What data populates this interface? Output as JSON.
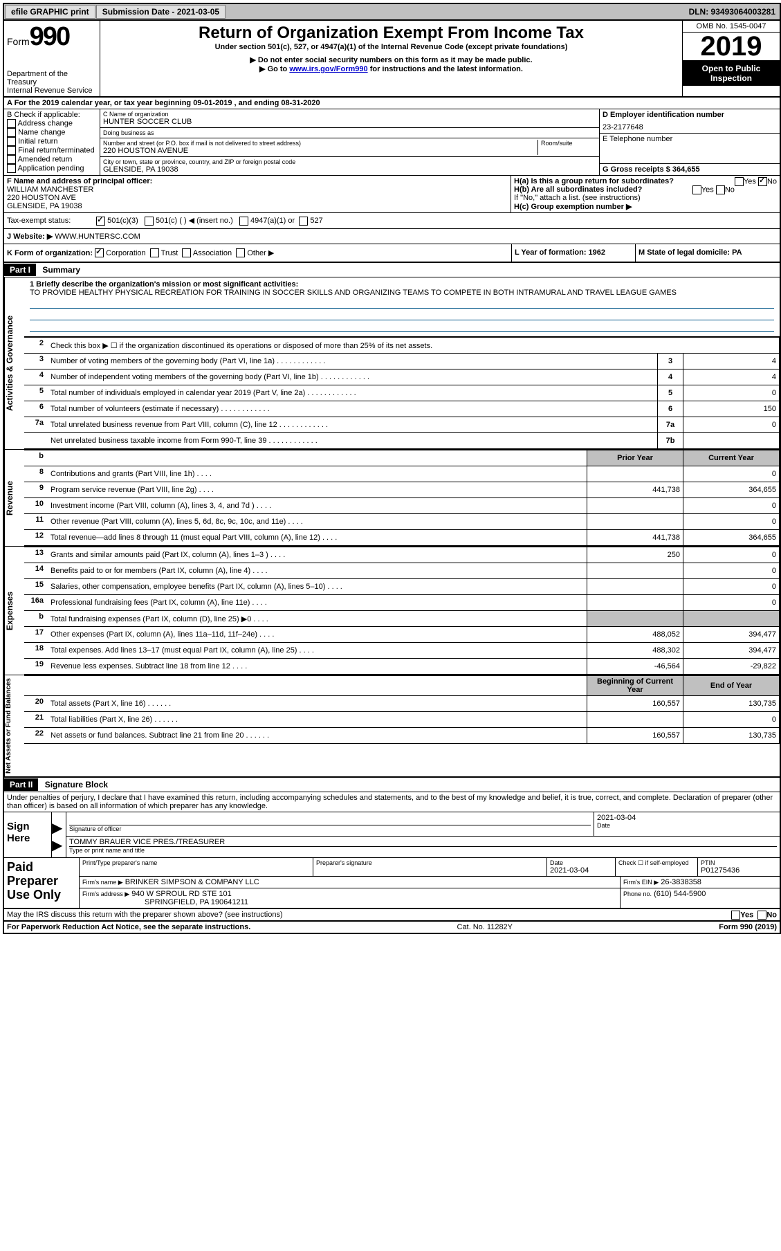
{
  "top_bar": {
    "efile_btn": "efile GRAPHIC print",
    "submission_label": "Submission Date - 2021-03-05",
    "dln": "DLN: 93493064003281"
  },
  "header": {
    "form_label": "Form",
    "form_number": "990",
    "dept": "Department of the Treasury",
    "irs": "Internal Revenue Service",
    "title": "Return of Organization Exempt From Income Tax",
    "sub1": "Under section 501(c), 527, or 4947(a)(1) of the Internal Revenue Code (except private foundations)",
    "sub2": "▶ Do not enter social security numbers on this form as it may be made public.",
    "sub3_pre": "▶ Go to ",
    "sub3_link": "www.irs.gov/Form990",
    "sub3_post": " for instructions and the latest information.",
    "omb": "OMB No. 1545-0047",
    "year": "2019",
    "open": "Open to Public Inspection"
  },
  "section_a": "A For the 2019 calendar year, or tax year beginning 09-01-2019   , and ending 08-31-2020",
  "box_b": {
    "title": "B Check if applicable:",
    "opts": [
      "Address change",
      "Name change",
      "Initial return",
      "Final return/terminated",
      "Amended return",
      "Application pending"
    ]
  },
  "box_c": {
    "name_label": "C Name of organization",
    "name": "HUNTER SOCCER CLUB",
    "dba_label": "Doing business as",
    "addr_label": "Number and street (or P.O. box if mail is not delivered to street address)",
    "room_label": "Room/suite",
    "addr": "220 HOUSTON AVENUE",
    "city_label": "City or town, state or province, country, and ZIP or foreign postal code",
    "city": "GLENSIDE, PA  19038"
  },
  "box_d": {
    "label": "D Employer identification number",
    "val": "23-2177648"
  },
  "box_e": {
    "label": "E Telephone number",
    "val": ""
  },
  "box_g": {
    "label": "G Gross receipts $ 364,655"
  },
  "box_f": {
    "label": "F  Name and address of principal officer:",
    "name": "WILLIAM MANCHESTER",
    "addr1": "220 HOUSTON AVE",
    "addr2": "GLENSIDE, PA  19038"
  },
  "box_h": {
    "ha": "H(a)  Is this a group return for subordinates?",
    "hb": "H(b)  Are all subordinates included?",
    "hb_note": "If \"No,\" attach a list. (see instructions)",
    "hc": "H(c)  Group exemption number ▶",
    "yes": "Yes",
    "no": "No"
  },
  "tax_status": {
    "label": "Tax-exempt status:",
    "opt1": "501(c)(3)",
    "opt2": "501(c) (  ) ◀ (insert no.)",
    "opt3": "4947(a)(1) or",
    "opt4": "527"
  },
  "website": {
    "label": "J    Website: ▶",
    "val": "WWW.HUNTERSC.COM"
  },
  "box_k": {
    "label": "K Form of organization:",
    "corp": "Corporation",
    "trust": "Trust",
    "assoc": "Association",
    "other": "Other ▶"
  },
  "box_l": "L Year of formation: 1962",
  "box_m": "M State of legal domicile: PA",
  "part1": {
    "header": "Part I",
    "title": "Summary",
    "line1_label": "1  Briefly describe the organization's mission or most significant activities:",
    "mission": "TO PROVIDE HEALTHY PHYSICAL RECREATION FOR TRAINING IN SOCCER SKILLS AND ORGANIZING TEAMS TO COMPETE IN BOTH INTRAMURAL AND TRAVEL LEAGUE GAMES",
    "line2": "Check this box ▶ ☐ if the organization discontinued its operations or disposed of more than 25% of its net assets.",
    "side_ag": "Activities & Governance",
    "side_rev": "Revenue",
    "side_exp": "Expenses",
    "side_net": "Net Assets or Fund Balances",
    "rows_ag": [
      {
        "n": "3",
        "d": "Number of voting members of the governing body (Part VI, line 1a)",
        "b": "3",
        "v": "4"
      },
      {
        "n": "4",
        "d": "Number of independent voting members of the governing body (Part VI, line 1b)",
        "b": "4",
        "v": "4"
      },
      {
        "n": "5",
        "d": "Total number of individuals employed in calendar year 2019 (Part V, line 2a)",
        "b": "5",
        "v": "0"
      },
      {
        "n": "6",
        "d": "Total number of volunteers (estimate if necessary)",
        "b": "6",
        "v": "150"
      },
      {
        "n": "7a",
        "d": "Total unrelated business revenue from Part VIII, column (C), line 12",
        "b": "7a",
        "v": "0"
      },
      {
        "n": "",
        "d": "Net unrelated business taxable income from Form 990-T, line 39",
        "b": "7b",
        "v": ""
      }
    ],
    "hdr_prior": "Prior Year",
    "hdr_curr": "Current Year",
    "rows_rev": [
      {
        "n": "8",
        "d": "Contributions and grants (Part VIII, line 1h)",
        "p": "",
        "c": "0"
      },
      {
        "n": "9",
        "d": "Program service revenue (Part VIII, line 2g)",
        "p": "441,738",
        "c": "364,655"
      },
      {
        "n": "10",
        "d": "Investment income (Part VIII, column (A), lines 3, 4, and 7d )",
        "p": "",
        "c": "0"
      },
      {
        "n": "11",
        "d": "Other revenue (Part VIII, column (A), lines 5, 6d, 8c, 9c, 10c, and 11e)",
        "p": "",
        "c": "0"
      },
      {
        "n": "12",
        "d": "Total revenue—add lines 8 through 11 (must equal Part VIII, column (A), line 12)",
        "p": "441,738",
        "c": "364,655"
      }
    ],
    "rows_exp": [
      {
        "n": "13",
        "d": "Grants and similar amounts paid (Part IX, column (A), lines 1–3 )",
        "p": "250",
        "c": "0"
      },
      {
        "n": "14",
        "d": "Benefits paid to or for members (Part IX, column (A), line 4)",
        "p": "",
        "c": "0"
      },
      {
        "n": "15",
        "d": "Salaries, other compensation, employee benefits (Part IX, column (A), lines 5–10)",
        "p": "",
        "c": "0"
      },
      {
        "n": "16a",
        "d": "Professional fundraising fees (Part IX, column (A), line 11e)",
        "p": "",
        "c": "0"
      },
      {
        "n": "b",
        "d": "Total fundraising expenses (Part IX, column (D), line 25) ▶0",
        "p": "GREY",
        "c": "GREY"
      },
      {
        "n": "17",
        "d": "Other expenses (Part IX, column (A), lines 11a–11d, 11f–24e)",
        "p": "488,052",
        "c": "394,477"
      },
      {
        "n": "18",
        "d": "Total expenses. Add lines 13–17 (must equal Part IX, column (A), line 25)",
        "p": "488,302",
        "c": "394,477"
      },
      {
        "n": "19",
        "d": "Revenue less expenses. Subtract line 18 from line 12",
        "p": "-46,564",
        "c": "-29,822"
      }
    ],
    "hdr_beg": "Beginning of Current Year",
    "hdr_end": "End of Year",
    "rows_net": [
      {
        "n": "20",
        "d": "Total assets (Part X, line 16)",
        "p": "160,557",
        "c": "130,735"
      },
      {
        "n": "21",
        "d": "Total liabilities (Part X, line 26)",
        "p": "",
        "c": "0"
      },
      {
        "n": "22",
        "d": "Net assets or fund balances. Subtract line 21 from line 20",
        "p": "160,557",
        "c": "130,735"
      }
    ]
  },
  "part2": {
    "header": "Part II",
    "title": "Signature Block",
    "perjury": "Under penalties of perjury, I declare that I have examined this return, including accompanying schedules and statements, and to the best of my knowledge and belief, it is true, correct, and complete. Declaration of preparer (other than officer) is based on all information of which preparer has any knowledge."
  },
  "sign": {
    "label": "Sign Here",
    "sig_officer": "Signature of officer",
    "date_label": "Date",
    "date": "2021-03-04",
    "name": "TOMMY BRAUER  VICE PRES./TREASURER",
    "type_label": "Type or print name and title"
  },
  "paid": {
    "label": "Paid Preparer Use Only",
    "print_label": "Print/Type preparer's name",
    "sig_label": "Preparer's signature",
    "date_label": "Date",
    "date": "2021-03-04",
    "check_label": "Check ☐ if self-employed",
    "ptin_label": "PTIN",
    "ptin": "P01275436",
    "firm_name_label": "Firm's name    ▶",
    "firm_name": "BRINKER SIMPSON & COMPANY LLC",
    "firm_ein_label": "Firm's EIN ▶",
    "firm_ein": "26-3838358",
    "firm_addr_label": "Firm's address ▶",
    "firm_addr1": "940 W SPROUL RD STE 101",
    "firm_addr2": "SPRINGFIELD, PA  190641211",
    "phone_label": "Phone no.",
    "phone": "(610) 544-5900"
  },
  "irs_discuss": "May the IRS discuss this return with the preparer shown above? (see instructions)",
  "footer": {
    "left": "For Paperwork Reduction Act Notice, see the separate instructions.",
    "mid": "Cat. No. 11282Y",
    "right_pre": "Form ",
    "right_num": "990",
    "right_post": " (2019)"
  }
}
